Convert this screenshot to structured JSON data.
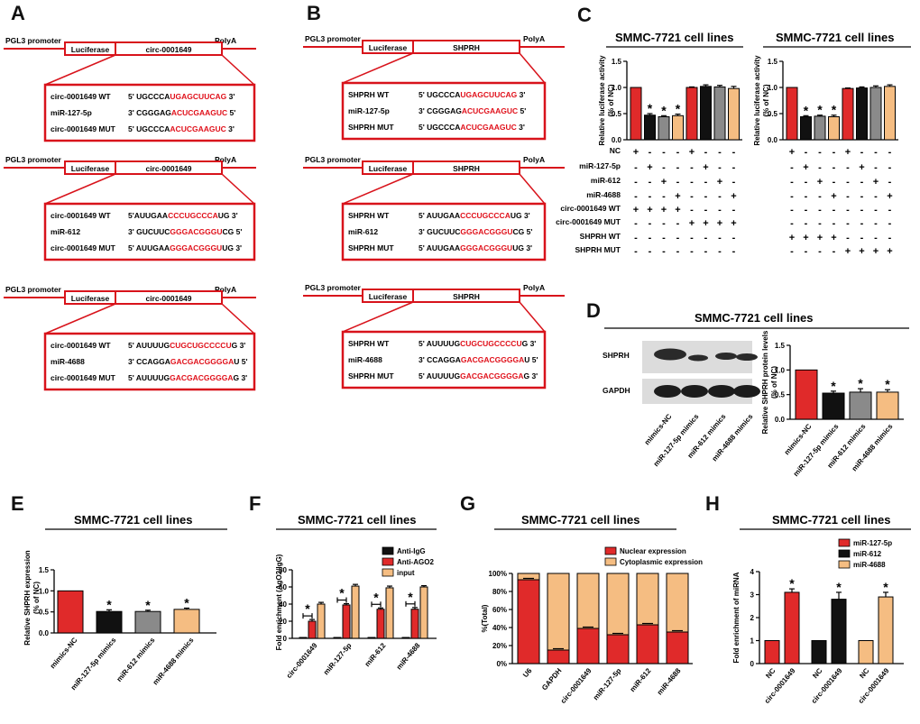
{
  "colors": {
    "red": "#e02a2a",
    "black": "#111111",
    "grey": "#8a8a8a",
    "peach": "#f5bd82",
    "line_red": "#d8131b"
  },
  "panels": {
    "A": {
      "letter": "A",
      "constructs": [
        {
          "promoter": "PGL3 promoter",
          "luciferase": "Luciferase",
          "insert": "circ-0001649",
          "polya": "PolyA",
          "rows": [
            {
              "label": "circ-0001649 WT",
              "prefix": "5' UGCCCA",
              "red": "UGAGCUUCAG",
              "suffix": " 3'"
            },
            {
              "label": "miR-127-5p",
              "prefix": "3' CGGGAG",
              "red": "ACUCGAAGUC",
              "suffix": " 5'"
            },
            {
              "label": "circ-0001649 MUT",
              "prefix": "5' UGCCCA",
              "red": "ACUCGAAGUC",
              "suffix": " 3'"
            }
          ]
        },
        {
          "promoter": "PGL3 promoter",
          "luciferase": "Luciferase",
          "insert": "circ-0001649",
          "polya": "PolyA",
          "rows": [
            {
              "label": "circ-0001649 WT",
              "prefix": "5'AUUGAA",
              "red": "CCCUGCCCA",
              "suffix": "UG 3'"
            },
            {
              "label": "miR-612",
              "prefix": "3' GUCUUC",
              "red": "GGGACGGGU",
              "suffix": "CG 5'"
            },
            {
              "label": "circ-0001649 MUT",
              "prefix": "5' AUUGAA",
              "red": "GGGACGGGU",
              "suffix": "UG 3'"
            }
          ]
        },
        {
          "promoter": "PGL3 promoter",
          "luciferase": "Luciferase",
          "insert": "circ-0001649",
          "polya": "PolyA",
          "rows": [
            {
              "label": "circ-0001649 WT",
              "prefix": "5' AUUUUG",
              "red": "CUGCUGCCCCU",
              "suffix": "G 3'"
            },
            {
              "label": "miR-4688",
              "prefix": "3' CCAGGA",
              "red": "GACGACGGGGA",
              "suffix": "U 5'"
            },
            {
              "label": "circ-0001649 MUT",
              "prefix": "5' AUUUUG",
              "red": "GACGACGGGGA",
              "suffix": "G 3'"
            }
          ]
        }
      ]
    },
    "B": {
      "letter": "B",
      "constructs": [
        {
          "promoter": "PGL3 promoter",
          "luciferase": "Luciferase",
          "insert": "SHPRH",
          "polya": "PolyA",
          "rows": [
            {
              "label": "SHPRH WT",
              "prefix": "5' UGCCCA",
              "red": "UGAGCUUCAG",
              "suffix": " 3'"
            },
            {
              "label": "miR-127-5p",
              "prefix": "3' CGGGAG",
              "red": "ACUCGAAGUC",
              "suffix": " 5'"
            },
            {
              "label": "SHPRH MUT",
              "prefix": "5' UGCCCA",
              "red": "ACUCGAAGUC",
              "suffix": " 3'"
            }
          ]
        },
        {
          "promoter": "PGL3 promoter",
          "luciferase": "Luciferase",
          "insert": "SHPRH",
          "polya": "PolyA",
          "rows": [
            {
              "label": "SHPRH WT",
              "prefix": "5' AUUGAA",
              "red": "CCCUGCCCA",
              "suffix": "UG 3'"
            },
            {
              "label": "miR-612",
              "prefix": "3' GUCUUC",
              "red": "GGGACGGGU",
              "suffix": "CG 5'"
            },
            {
              "label": "SHPRH MUT",
              "prefix": "5' AUUGAA",
              "red": "GGGACGGGU",
              "suffix": "UG 3'"
            }
          ]
        },
        {
          "promoter": "PGL3 promoter",
          "luciferase": "Luciferase",
          "insert": "SHPRH",
          "polya": "PolyA",
          "rows": [
            {
              "label": "SHPRH WT",
              "prefix": "5' AUUUUG",
              "red": "CUGCUGCCCCU",
              "suffix": "G 3'"
            },
            {
              "label": "miR-4688",
              "prefix": "3' CCAGGA",
              "red": "GACGACGGGGA",
              "suffix": "U 5'"
            },
            {
              "label": "SHPRH MUT",
              "prefix": "5' AUUUUG",
              "red": "GACGACGGGGA",
              "suffix": "G 3'"
            }
          ]
        }
      ]
    },
    "C": {
      "letter": "C",
      "title": "SMMC-7721 cell lines",
      "ylabel": "Relative luciferase activity\n(% of NC)",
      "row_labels": [
        "NC",
        "miR-127-5p",
        "miR-612",
        "miR-4688",
        "circ-0001649 WT",
        "circ-0001649 MUT",
        "SHPRH WT",
        "SHPRH MUT"
      ],
      "signs_left": [
        [
          "+",
          "-",
          "-",
          "-",
          "+",
          "-",
          "-",
          "-"
        ],
        [
          "-",
          "+",
          "-",
          "-",
          "+",
          "-",
          "-",
          "-"
        ],
        [
          "-",
          "-",
          "+",
          "-",
          "+",
          "-",
          "-",
          "-"
        ],
        [
          "-",
          "-",
          "-",
          "+",
          "+",
          "-",
          "-",
          "-"
        ],
        [
          "+",
          "-",
          "-",
          "-",
          "-",
          "+",
          "-",
          "-"
        ],
        [
          "-",
          "+",
          "-",
          "-",
          "-",
          "+",
          "-",
          "-"
        ],
        [
          "-",
          "-",
          "+",
          "-",
          "-",
          "+",
          "-",
          "-"
        ],
        [
          "-",
          "-",
          "-",
          "+",
          "-",
          "+",
          "-",
          "-"
        ]
      ],
      "signs_right": [
        [
          "+",
          "-",
          "-",
          "-",
          "-",
          "-",
          "+",
          "-"
        ],
        [
          "-",
          "+",
          "-",
          "-",
          "-",
          "-",
          "+",
          "-"
        ],
        [
          "-",
          "-",
          "+",
          "-",
          "-",
          "-",
          "+",
          "-"
        ],
        [
          "-",
          "-",
          "-",
          "+",
          "-",
          "-",
          "+",
          "-"
        ],
        [
          "+",
          "-",
          "-",
          "-",
          "-",
          "-",
          "-",
          "+"
        ],
        [
          "-",
          "+",
          "-",
          "-",
          "-",
          "-",
          "-",
          "+"
        ],
        [
          "-",
          "-",
          "+",
          "-",
          "-",
          "-",
          "-",
          "+"
        ],
        [
          "-",
          "-",
          "-",
          "+",
          "-",
          "-",
          "-",
          "+"
        ]
      ]
    },
    "D": {
      "letter": "D",
      "title": "SMMC-7721 cell lines",
      "blot_labels": [
        "SHPRH",
        "GAPDH"
      ],
      "lanes": [
        "mimics-NC",
        "miR-127-5p mimics",
        "miR-612  mimics",
        "miR-4688 mimics"
      ],
      "ylabel": "Relative SHPRH protein levels\n(% of NC)",
      "cats": [
        "mimics-NC",
        "miR-127-5p mimics",
        "miR-612 mimics",
        "miR-4688 mimics"
      ]
    },
    "E": {
      "letter": "E",
      "title": "SMMC-7721 cell lines",
      "ylabel": "Relative SHPRH expression\n(% of NC)",
      "cats": [
        "mimics-NC",
        "miR-127-5p mimics",
        "miR-612 mimics",
        "miR-4688 mimics"
      ]
    },
    "F": {
      "letter": "F",
      "title": "SMMC-7721 cell lines",
      "ylabel": "Fold enrichment (AgO2/IgG)",
      "legend": [
        "Anti-IgG",
        "Anti-AGO2",
        "input"
      ],
      "cats": [
        "circ-0001649",
        "miR-127-5p",
        "miR-612",
        "miR-4688"
      ]
    },
    "G": {
      "letter": "G",
      "title": "SMMC-7721 cell lines",
      "ylabel": "%(Total)",
      "legend": [
        "Nuclear expression",
        "Cytoplasmic expression"
      ],
      "cats": [
        "U6",
        "GAPDH",
        "circ-0001649",
        "miR-127-5p",
        "miR-612",
        "miR-4688"
      ]
    },
    "H": {
      "letter": "H",
      "title": "SMMC-7721 cell lines",
      "ylabel": "Fold enrichment of miRNA",
      "legend": [
        "miR-127-5p",
        "miR-612",
        "miR-4688"
      ],
      "cats": [
        "NC",
        "circ-0001649",
        "NC",
        "circ-0001649",
        "NC",
        "circ-0001649"
      ]
    }
  },
  "chart_data": [
    {
      "id": "C-left",
      "type": "bar",
      "title": "SMMC-7721 cell lines",
      "ylabel": "Relative luciferase activity (% of NC)",
      "ylim": [
        0,
        1.5
      ],
      "yticks": [
        "0.0",
        "0.5",
        "1.0",
        "1.5"
      ],
      "values": [
        1.0,
        0.47,
        0.44,
        0.46,
        1.0,
        1.02,
        1.01,
        0.98
      ],
      "errors": [
        0,
        0.03,
        0.02,
        0.03,
        0.01,
        0.03,
        0.03,
        0.04
      ],
      "colors": [
        "red",
        "black",
        "grey",
        "peach",
        "red",
        "black",
        "grey",
        "peach"
      ],
      "stars": [
        false,
        true,
        true,
        true,
        false,
        false,
        false,
        false
      ]
    },
    {
      "id": "C-right",
      "type": "bar",
      "title": "SMMC-7721 cell lines",
      "ylabel": "Relative luciferase activity (% of NC)",
      "ylim": [
        0,
        1.5
      ],
      "yticks": [
        "0.0",
        "0.5",
        "1.0",
        "1.5"
      ],
      "values": [
        1.0,
        0.44,
        0.45,
        0.44,
        0.98,
        0.99,
        1.0,
        1.02
      ],
      "errors": [
        0,
        0.02,
        0.02,
        0.03,
        0.01,
        0.02,
        0.03,
        0.03
      ],
      "colors": [
        "red",
        "black",
        "grey",
        "peach",
        "red",
        "black",
        "grey",
        "peach"
      ],
      "stars": [
        false,
        true,
        true,
        true,
        false,
        false,
        false,
        false
      ]
    },
    {
      "id": "D",
      "type": "bar",
      "ylabel": "Relative SHPRH protein levels (% of NC)",
      "ylim": [
        0,
        1.5
      ],
      "yticks": [
        "0.0",
        "0.5",
        "1.0",
        "1.5"
      ],
      "categories": [
        "mimics-NC",
        "miR-127-5p mimics",
        "miR-612 mimics",
        "miR-4688 mimics"
      ],
      "values": [
        1.0,
        0.53,
        0.55,
        0.55
      ],
      "errors": [
        0,
        0.04,
        0.07,
        0.05
      ],
      "colors": [
        "red",
        "black",
        "grey",
        "peach"
      ],
      "stars": [
        false,
        true,
        true,
        true
      ]
    },
    {
      "id": "E",
      "type": "bar",
      "title": "SMMC-7721 cell lines",
      "ylabel": "Relative SHPRH expression (% of NC)",
      "ylim": [
        0,
        1.5
      ],
      "yticks": [
        "0.0",
        "0.5",
        "1.0",
        "1.5"
      ],
      "categories": [
        "mimics-NC",
        "miR-127-5p mimics",
        "miR-612 mimics",
        "miR-4688 mimics"
      ],
      "values": [
        1.0,
        0.51,
        0.51,
        0.56
      ],
      "errors": [
        0,
        0.04,
        0.03,
        0.03
      ],
      "colors": [
        "red",
        "black",
        "grey",
        "peach"
      ],
      "stars": [
        false,
        true,
        true,
        true
      ]
    },
    {
      "id": "F",
      "type": "bar",
      "title": "SMMC-7721 cell lines",
      "ylabel": "Fold enrichment (AgO2/IgG)",
      "ylim": [
        0,
        80
      ],
      "yticks": [
        "0",
        "20",
        "40",
        "60",
        "80"
      ],
      "categories": [
        "circ-0001649",
        "miR-127-5p",
        "miR-612",
        "miR-4688"
      ],
      "series": [
        {
          "name": "Anti-IgG",
          "color": "black",
          "values": [
            1,
            1,
            1,
            1
          ],
          "errors": [
            0,
            0,
            0,
            0
          ]
        },
        {
          "name": "Anti-AGO2",
          "color": "red",
          "values": [
            20,
            39,
            34,
            34
          ],
          "errors": [
            2,
            1.5,
            1.5,
            2
          ]
        },
        {
          "name": "input",
          "color": "peach",
          "values": [
            40,
            61,
            59,
            60
          ],
          "errors": [
            2,
            2,
            2,
            1.5
          ]
        }
      ]
    },
    {
      "id": "G",
      "type": "bar",
      "stacked": true,
      "title": "SMMC-7721 cell lines",
      "ylabel": "%(Total)",
      "ylim": [
        0,
        100
      ],
      "yticks": [
        "0%",
        "20%",
        "40%",
        "60%",
        "80%",
        "100%"
      ],
      "categories": [
        "U6",
        "GAPDH",
        "circ-0001649",
        "miR-127-5p",
        "miR-612",
        "miR-4688"
      ],
      "series": [
        {
          "name": "Nuclear expression",
          "color": "red",
          "values": [
            93,
            15,
            39,
            32,
            43,
            35
          ]
        },
        {
          "name": "Cytoplasmic expression",
          "color": "peach",
          "values": [
            7,
            85,
            61,
            68,
            57,
            65
          ]
        }
      ]
    },
    {
      "id": "H",
      "type": "bar",
      "title": "SMMC-7721 cell lines",
      "ylabel": "Fold enrichment of miRNA",
      "ylim": [
        0,
        4
      ],
      "yticks": [
        "0",
        "1",
        "2",
        "3",
        "4"
      ],
      "categories": [
        "NC",
        "circ-0001649",
        "NC",
        "circ-0001649",
        "NC",
        "circ-0001649"
      ],
      "values": [
        1,
        3.1,
        1,
        2.8,
        1,
        2.9
      ],
      "errors": [
        0,
        0.15,
        0,
        0.3,
        0,
        0.2
      ],
      "colors": [
        "red",
        "red",
        "black",
        "black",
        "peach",
        "peach"
      ],
      "stars": [
        false,
        true,
        false,
        true,
        false,
        true
      ]
    }
  ]
}
